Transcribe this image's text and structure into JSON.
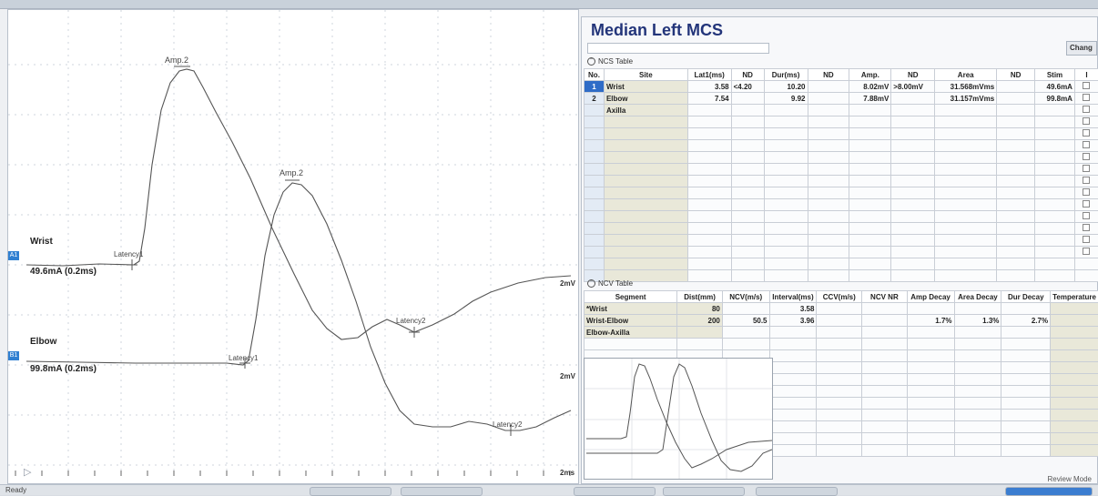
{
  "panel_title": "Median Left MCS",
  "change_button": "Chang",
  "ncs_section": "NCS Table",
  "ncs_columns": [
    "No.",
    "Site",
    "Lat1(ms)",
    "ND",
    "Dur(ms)",
    "ND",
    "Amp.",
    "ND",
    "Area",
    "ND",
    "Stim",
    "I"
  ],
  "ncs_rows": [
    {
      "no": "1",
      "site": "Wrist",
      "lat1": "3.58",
      "nd1": "<4.20",
      "dur": "10.20",
      "nd2": "",
      "amp": "8.02mV",
      "nd3": ">8.00mV",
      "area": "31.568mVms",
      "nd4": "",
      "stim": "49.6mA"
    },
    {
      "no": "2",
      "site": "Elbow",
      "lat1": "7.54",
      "nd1": "",
      "dur": "9.92",
      "nd2": "",
      "amp": "7.88mV",
      "nd3": "",
      "area": "31.157mVms",
      "nd4": "",
      "stim": "99.8mA"
    },
    {
      "no": "",
      "site": "Axilla",
      "lat1": "",
      "nd1": "",
      "dur": "",
      "nd2": "",
      "amp": "",
      "nd3": "",
      "area": "",
      "nd4": "",
      "stim": ""
    }
  ],
  "ncv_section": "NCV Table",
  "ncv_columns": [
    "Segment",
    "Dist(mm)",
    "NCV(m/s)",
    "Interval(ms)",
    "CCV(m/s)",
    "NCV NR",
    "Amp Decay",
    "Area Decay",
    "Dur Decay",
    "Temperature"
  ],
  "ncv_rows": [
    {
      "segment": "*Wrist",
      "dist": "80",
      "ncv": "",
      "interval": "3.58",
      "ccv": "",
      "nr": "",
      "amp_decay": "",
      "area_decay": "",
      "dur_decay": ""
    },
    {
      "segment": "Wrist-Elbow",
      "dist": "200",
      "ncv": "50.5",
      "interval": "3.96",
      "ccv": "",
      "nr": "",
      "amp_decay": "1.7%",
      "area_decay": "1.3%",
      "dur_decay": "2.7%"
    },
    {
      "segment": "Elbow-Axilla",
      "dist": "",
      "ncv": "",
      "interval": "",
      "ccv": "",
      "nr": "",
      "amp_decay": "",
      "area_decay": "",
      "dur_decay": ""
    }
  ],
  "traces": {
    "a1_tag": "A1",
    "a1_site": "Wrist",
    "a1_stim": "49.6mA (0.2ms)",
    "b1_tag": "B1",
    "b1_site": "Elbow",
    "b1_stim": "99.8mA (0.2ms)",
    "amp_label_1": "Amp.2",
    "amp_label_2": "Amp.2",
    "latency1_label_a": "Latency1",
    "latency1_label_b": "Latency1",
    "latency2_label_a": "Latency2",
    "latency2_label_b": "Latency2",
    "scale_1": "2mV",
    "scale_2": "2mV",
    "scale_time": "2ms"
  },
  "review_mode": "Review Mode",
  "status": "Ready",
  "colors": {
    "title": "#23357a",
    "selected_row": "#2f6cc7",
    "trace": "#555555",
    "marker": "#2f7fd1"
  }
}
